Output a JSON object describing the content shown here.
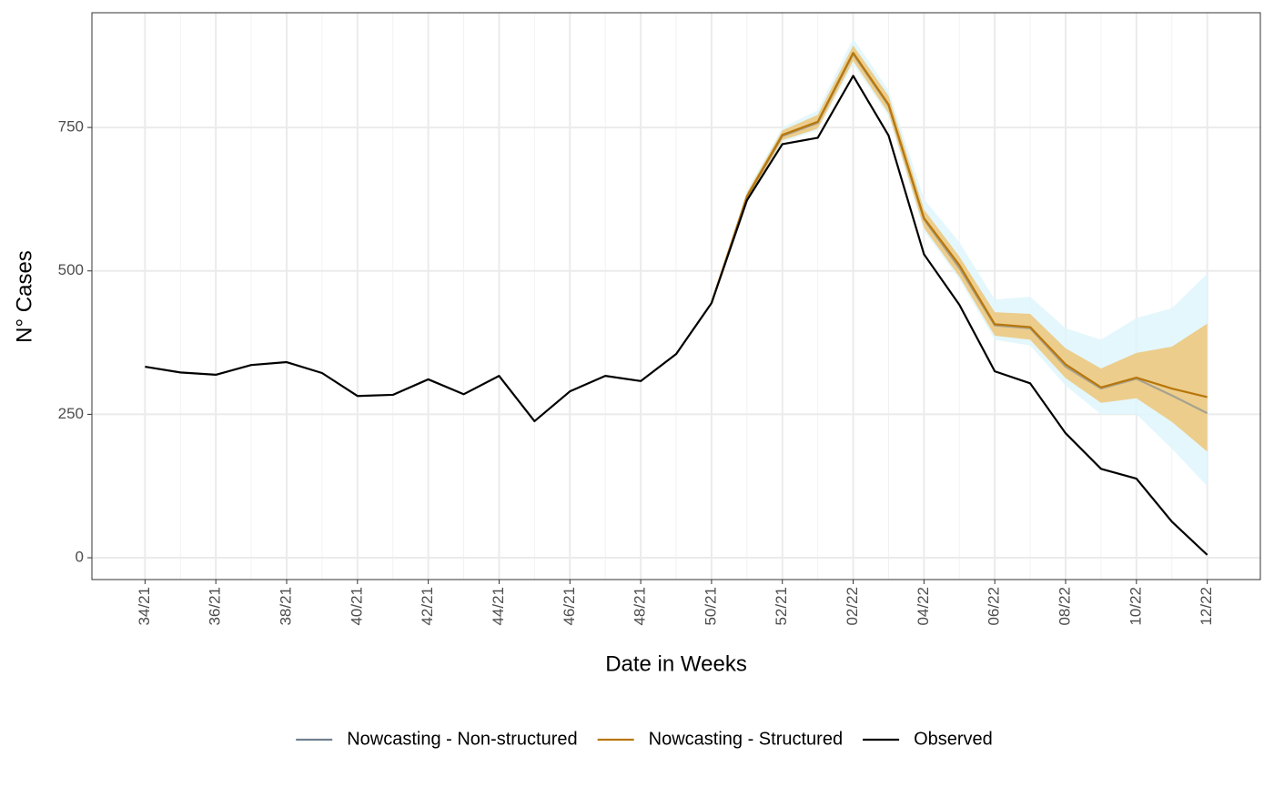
{
  "chart_data": {
    "type": "line",
    "xlabel": "Date in Weeks",
    "ylabel": "N° Cases",
    "categories": [
      "34/21",
      null,
      "36/21",
      null,
      "38/21",
      null,
      "40/21",
      null,
      "42/21",
      null,
      "44/21",
      null,
      "46/21",
      null,
      "48/21",
      null,
      "50/21",
      null,
      "52/21",
      null,
      "02/22",
      null,
      "04/22",
      null,
      "06/22",
      null,
      "08/22",
      null,
      "10/22",
      null,
      "12/22"
    ],
    "ylim": [
      -38,
      950
    ],
    "yticks": [
      0,
      250,
      500,
      750
    ],
    "grid": true,
    "legend": "bottom",
    "series": [
      {
        "name": "Nowcasting - Non-structured",
        "color": "#708090",
        "band_color": "#dff6fd",
        "values": [
          null,
          null,
          null,
          null,
          null,
          null,
          null,
          null,
          null,
          null,
          null,
          null,
          null,
          null,
          null,
          null,
          444,
          628,
          735,
          758,
          878,
          788,
          590,
          505,
          405,
          400,
          333,
          295,
          312,
          283,
          252
        ],
        "lower": [
          null,
          null,
          null,
          null,
          null,
          null,
          null,
          null,
          null,
          null,
          null,
          null,
          null,
          null,
          null,
          null,
          444,
          618,
          725,
          745,
          860,
          770,
          570,
          485,
          380,
          370,
          300,
          250,
          250,
          190,
          125
        ],
        "upper": [
          null,
          null,
          null,
          null,
          null,
          null,
          null,
          null,
          null,
          null,
          null,
          null,
          null,
          null,
          null,
          null,
          444,
          640,
          750,
          780,
          905,
          815,
          625,
          550,
          450,
          455,
          400,
          380,
          418,
          435,
          495
        ]
      },
      {
        "name": "Nowcasting - Structured",
        "color": "#b8760a",
        "band_color": "#edc678",
        "values": [
          null,
          null,
          null,
          null,
          null,
          null,
          null,
          null,
          null,
          null,
          null,
          null,
          null,
          null,
          null,
          null,
          444,
          630,
          737,
          760,
          880,
          790,
          592,
          510,
          407,
          402,
          337,
          297,
          314,
          295,
          280
        ],
        "lower": [
          null,
          null,
          null,
          null,
          null,
          null,
          null,
          null,
          null,
          null,
          null,
          null,
          null,
          null,
          null,
          null,
          444,
          622,
          728,
          748,
          866,
          775,
          575,
          490,
          387,
          380,
          313,
          270,
          278,
          237,
          185
        ],
        "upper": [
          null,
          null,
          null,
          null,
          null,
          null,
          null,
          null,
          null,
          null,
          null,
          null,
          null,
          null,
          null,
          null,
          444,
          636,
          745,
          772,
          893,
          805,
          607,
          525,
          428,
          425,
          365,
          330,
          357,
          368,
          408
        ]
      },
      {
        "name": "Observed",
        "color": "#000000",
        "values": [
          333,
          323,
          319,
          336,
          341,
          322,
          282,
          284,
          311,
          285,
          317,
          238,
          290,
          317,
          308,
          355,
          444,
          623,
          721,
          732,
          840,
          736,
          529,
          441,
          325,
          304,
          217,
          155,
          138,
          63,
          5
        ]
      }
    ]
  }
}
